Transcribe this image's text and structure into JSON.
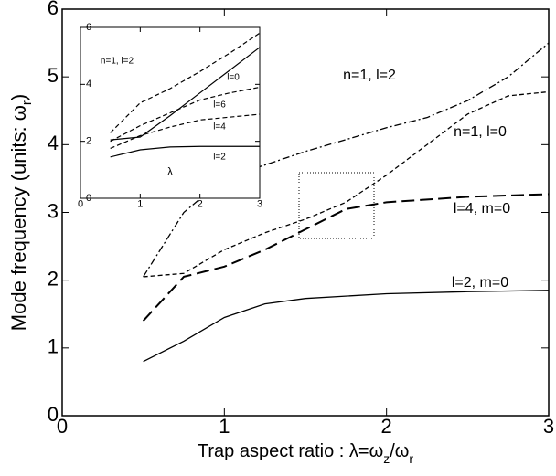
{
  "chart_data": [
    {
      "type": "line",
      "xlabel": [
        "Trap aspect ratio :  λ=ω",
        "z",
        "/ω",
        "r"
      ],
      "ylabel": [
        "Mode frequency (units: ω",
        "r",
        ")"
      ],
      "xlim": [
        0,
        3
      ],
      "ylim": [
        0,
        6
      ],
      "xticks": [
        0,
        1,
        2,
        3
      ],
      "yticks": [
        0,
        1,
        2,
        3,
        4,
        5,
        6
      ],
      "series": [
        {
          "name": "l=2, m=0",
          "color": "#000000",
          "dash": "none",
          "x": [
            0.5,
            0.75,
            1.0,
            1.25,
            1.5,
            2.0,
            2.5,
            3.0
          ],
          "values": [
            0.8,
            1.1,
            1.45,
            1.65,
            1.73,
            1.8,
            1.83,
            1.85
          ]
        },
        {
          "name": "l=4, m=0",
          "color": "#000000",
          "dash": "14 6",
          "x": [
            0.5,
            0.75,
            1.0,
            1.25,
            1.5,
            1.75,
            2.0,
            2.5,
            3.0
          ],
          "values": [
            1.4,
            2.05,
            2.2,
            2.45,
            2.75,
            3.05,
            3.15,
            3.23,
            3.27
          ]
        },
        {
          "name": "n=1, l=0",
          "color": "#000000",
          "dash": "5 3",
          "x": [
            0.5,
            0.75,
            1.0,
            1.25,
            1.5,
            1.75,
            2.0,
            2.25,
            2.5,
            2.75,
            3.0
          ],
          "values": [
            2.05,
            2.1,
            2.45,
            2.7,
            2.9,
            3.15,
            3.55,
            4.0,
            4.45,
            4.72,
            4.78
          ]
        },
        {
          "name": "n=1, l=2",
          "color": "#000000",
          "dash": "8 3 2 3",
          "x": [
            0.5,
            0.75,
            1.0,
            1.25,
            1.5,
            2.0,
            2.25,
            2.5,
            2.75,
            3.0
          ],
          "values": [
            2.05,
            3.0,
            3.5,
            3.7,
            3.9,
            4.25,
            4.4,
            4.65,
            5.0,
            5.5
          ]
        }
      ]
    },
    {
      "type": "line",
      "xlabel": "λ",
      "xlim": [
        0,
        3
      ],
      "ylim": [
        0,
        6
      ],
      "xticks": [
        0,
        1,
        2,
        3
      ],
      "yticks": [
        0,
        2,
        4,
        6
      ],
      "series": [
        {
          "name": "l=2",
          "color": "#000000",
          "dash": "none",
          "x": [
            0.5,
            1.0,
            1.5,
            2.0,
            3.0
          ],
          "values": [
            1.45,
            1.7,
            1.8,
            1.82,
            1.82
          ]
        },
        {
          "name": "l=4",
          "color": "#000000",
          "dash": "5 3",
          "x": [
            0.5,
            1.0,
            1.5,
            2.0,
            2.5,
            3.0
          ],
          "values": [
            1.75,
            2.2,
            2.5,
            2.75,
            2.85,
            2.95
          ]
        },
        {
          "name": "l=6",
          "color": "#000000",
          "dash": "5 3",
          "x": [
            0.5,
            1.0,
            1.5,
            2.0,
            2.5,
            3.0
          ],
          "values": [
            2.0,
            2.55,
            3.0,
            3.45,
            3.7,
            3.9
          ]
        },
        {
          "name": "l=0",
          "color": "#000000",
          "dash": "none",
          "x": [
            0.5,
            1.0,
            1.5,
            2.0,
            2.5,
            3.0
          ],
          "values": [
            2.05,
            2.15,
            2.9,
            3.7,
            4.5,
            5.3
          ]
        },
        {
          "name": "n=1, l=2",
          "color": "#000000",
          "dash": "5 3",
          "x": [
            0.5,
            1.0,
            1.5,
            2.0,
            2.5,
            3.0
          ],
          "values": [
            2.3,
            3.35,
            3.85,
            4.45,
            5.1,
            5.8
          ]
        }
      ]
    }
  ]
}
